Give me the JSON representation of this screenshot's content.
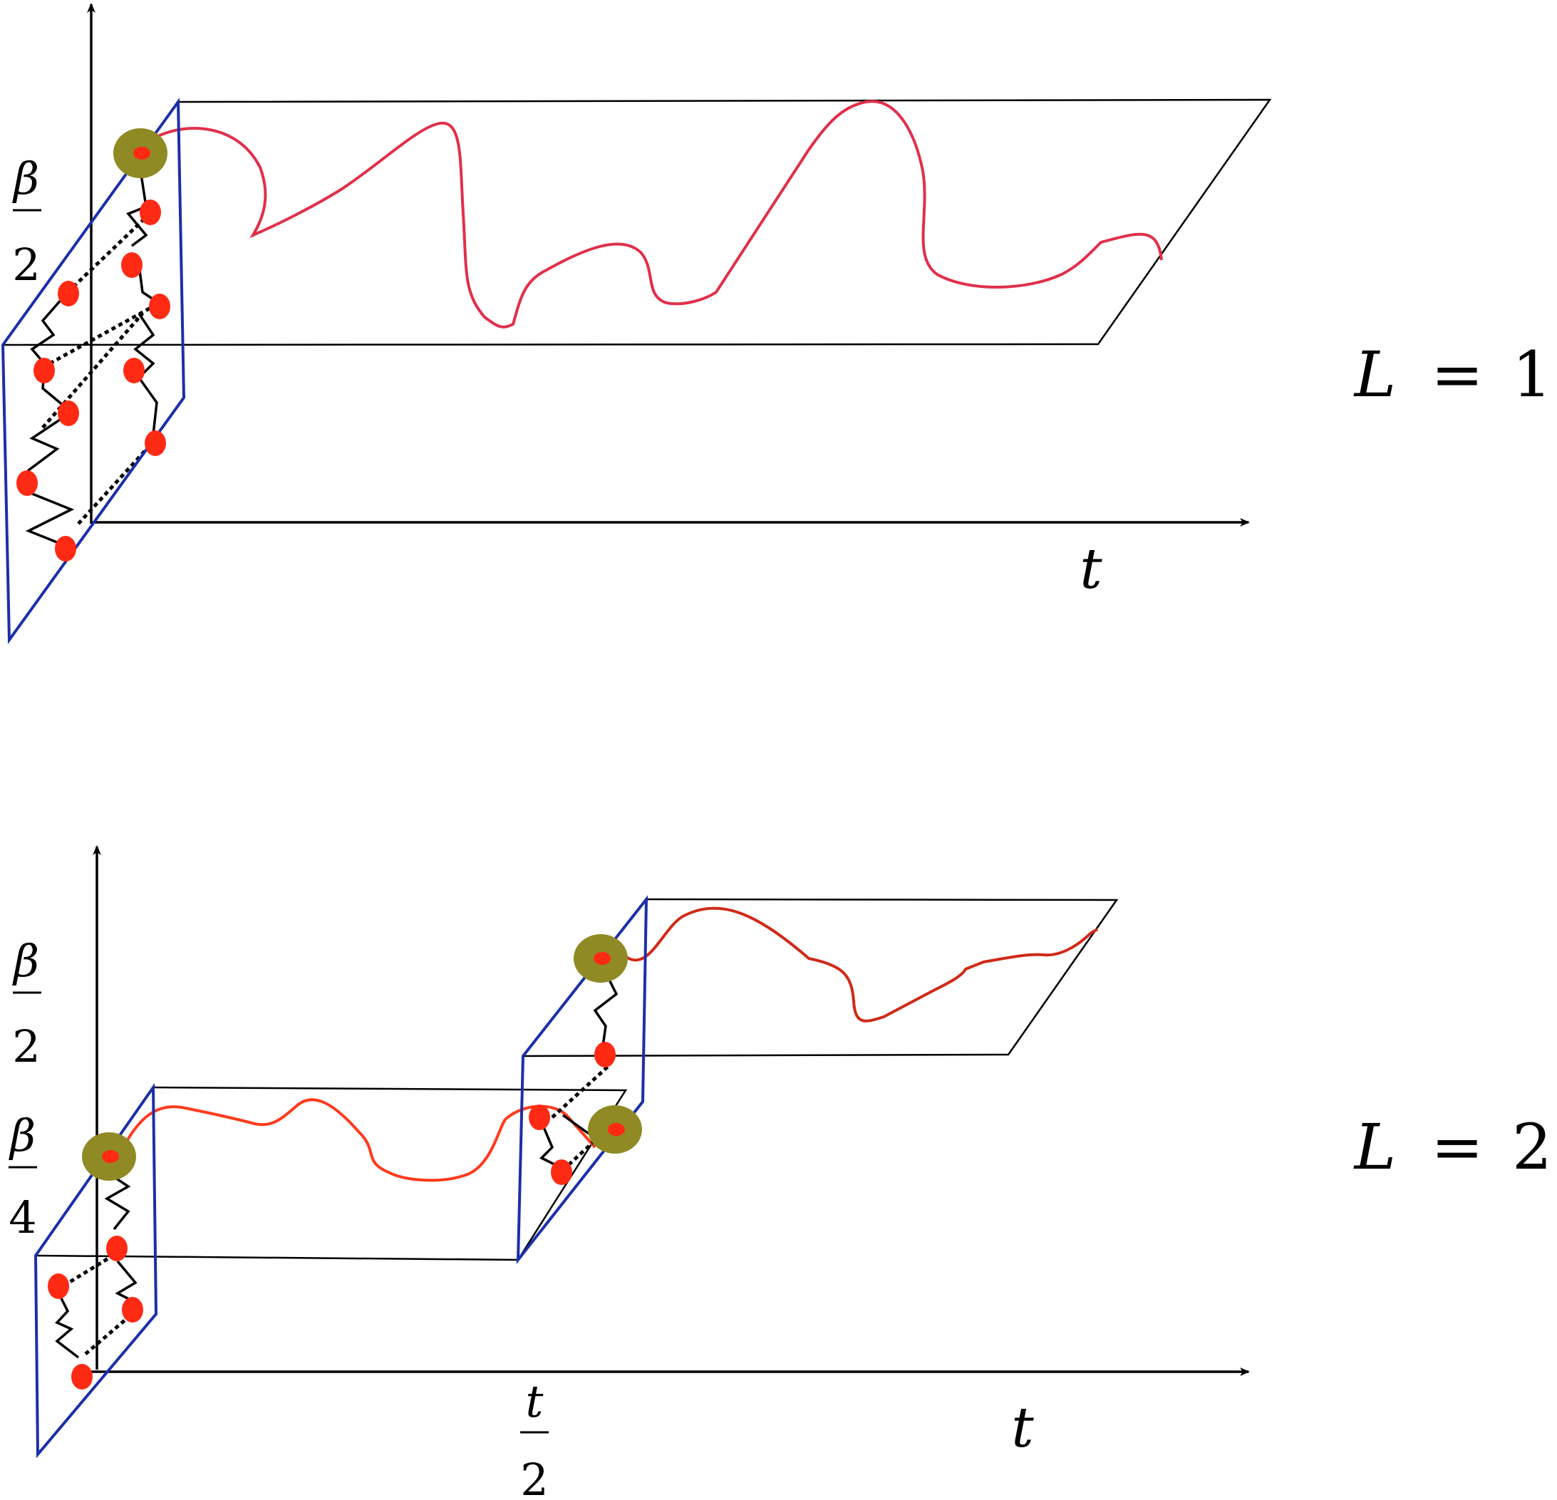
{
  "panel_top": {
    "ylabel": {
      "num": "β",
      "den": "2"
    },
    "xlabel": "t",
    "tag": {
      "var": "L",
      "eq": "=",
      "val": "1"
    }
  },
  "panel_bottom": {
    "ylabel_upper": {
      "num": "β",
      "den": "2"
    },
    "ylabel_lower": {
      "num": "β",
      "den": "4"
    },
    "xlabel_mid": {
      "num": "t",
      "den": "2"
    },
    "xlabel": "t",
    "tag": {
      "var": "L",
      "eq": "=",
      "val": "2"
    }
  },
  "colors": {
    "slice_border": "#1c2fa8",
    "curve_top": "#e0304a",
    "curve_bottom": "#de3a1c",
    "dot": "#ff2a14",
    "anchor_ring": "#8f8a24",
    "axis": "#000000"
  }
}
